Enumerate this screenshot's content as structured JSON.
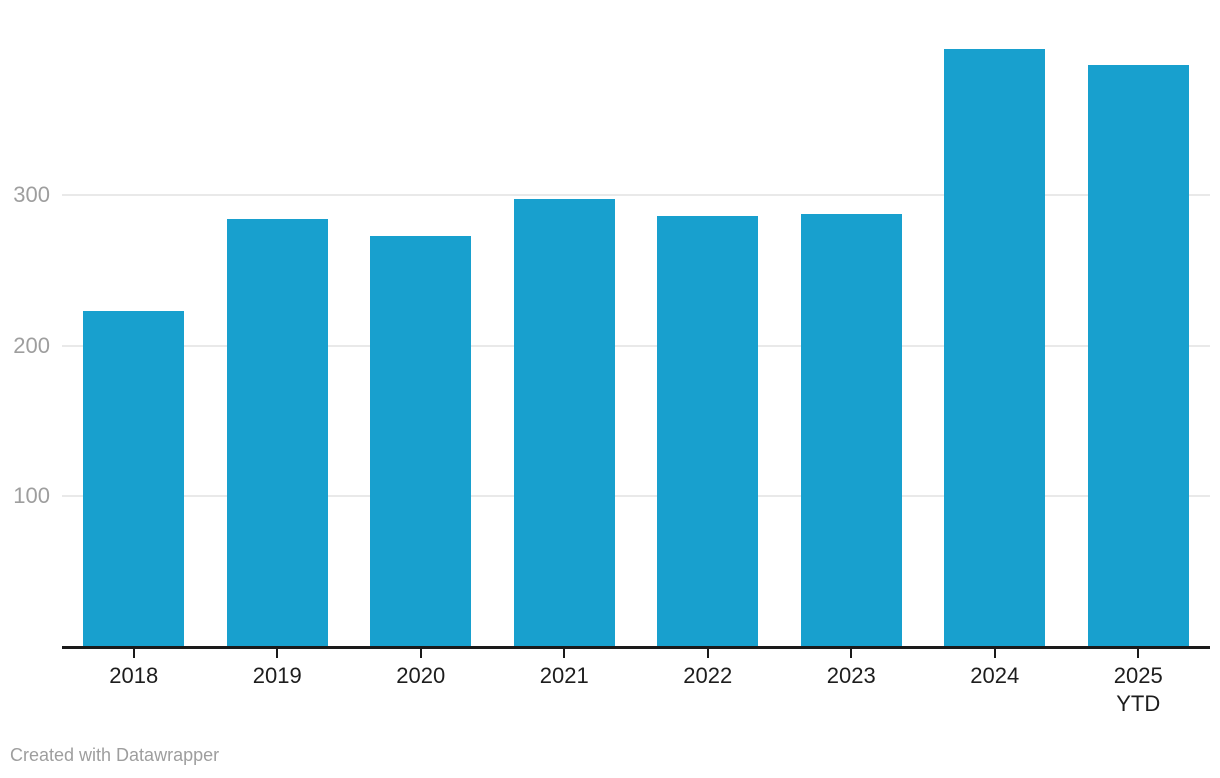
{
  "chart_data": {
    "type": "bar",
    "categories": [
      "2018",
      "2019",
      "2020",
      "2021",
      "2022",
      "2023",
      "2024",
      "2025 YTD"
    ],
    "values": [
      223,
      284,
      273,
      297,
      286,
      287,
      397,
      386
    ],
    "title": "",
    "xlabel": "",
    "ylabel": "",
    "yticks": [
      100,
      200,
      300
    ],
    "ylim": [
      0,
      430
    ],
    "grid": true,
    "legend": "none",
    "bar_color": "#18a0ce"
  },
  "colors": {
    "bar": "#18a0ce",
    "gridline": "#e9e9e9",
    "axis_line": "#1a1a1a",
    "y_tick_label": "#9e9e9e",
    "x_tick_label": "#1d1d1d",
    "footer_text": "#9e9e9e",
    "background": "#ffffff"
  },
  "footer": {
    "credit": "Created with Datawrapper"
  }
}
